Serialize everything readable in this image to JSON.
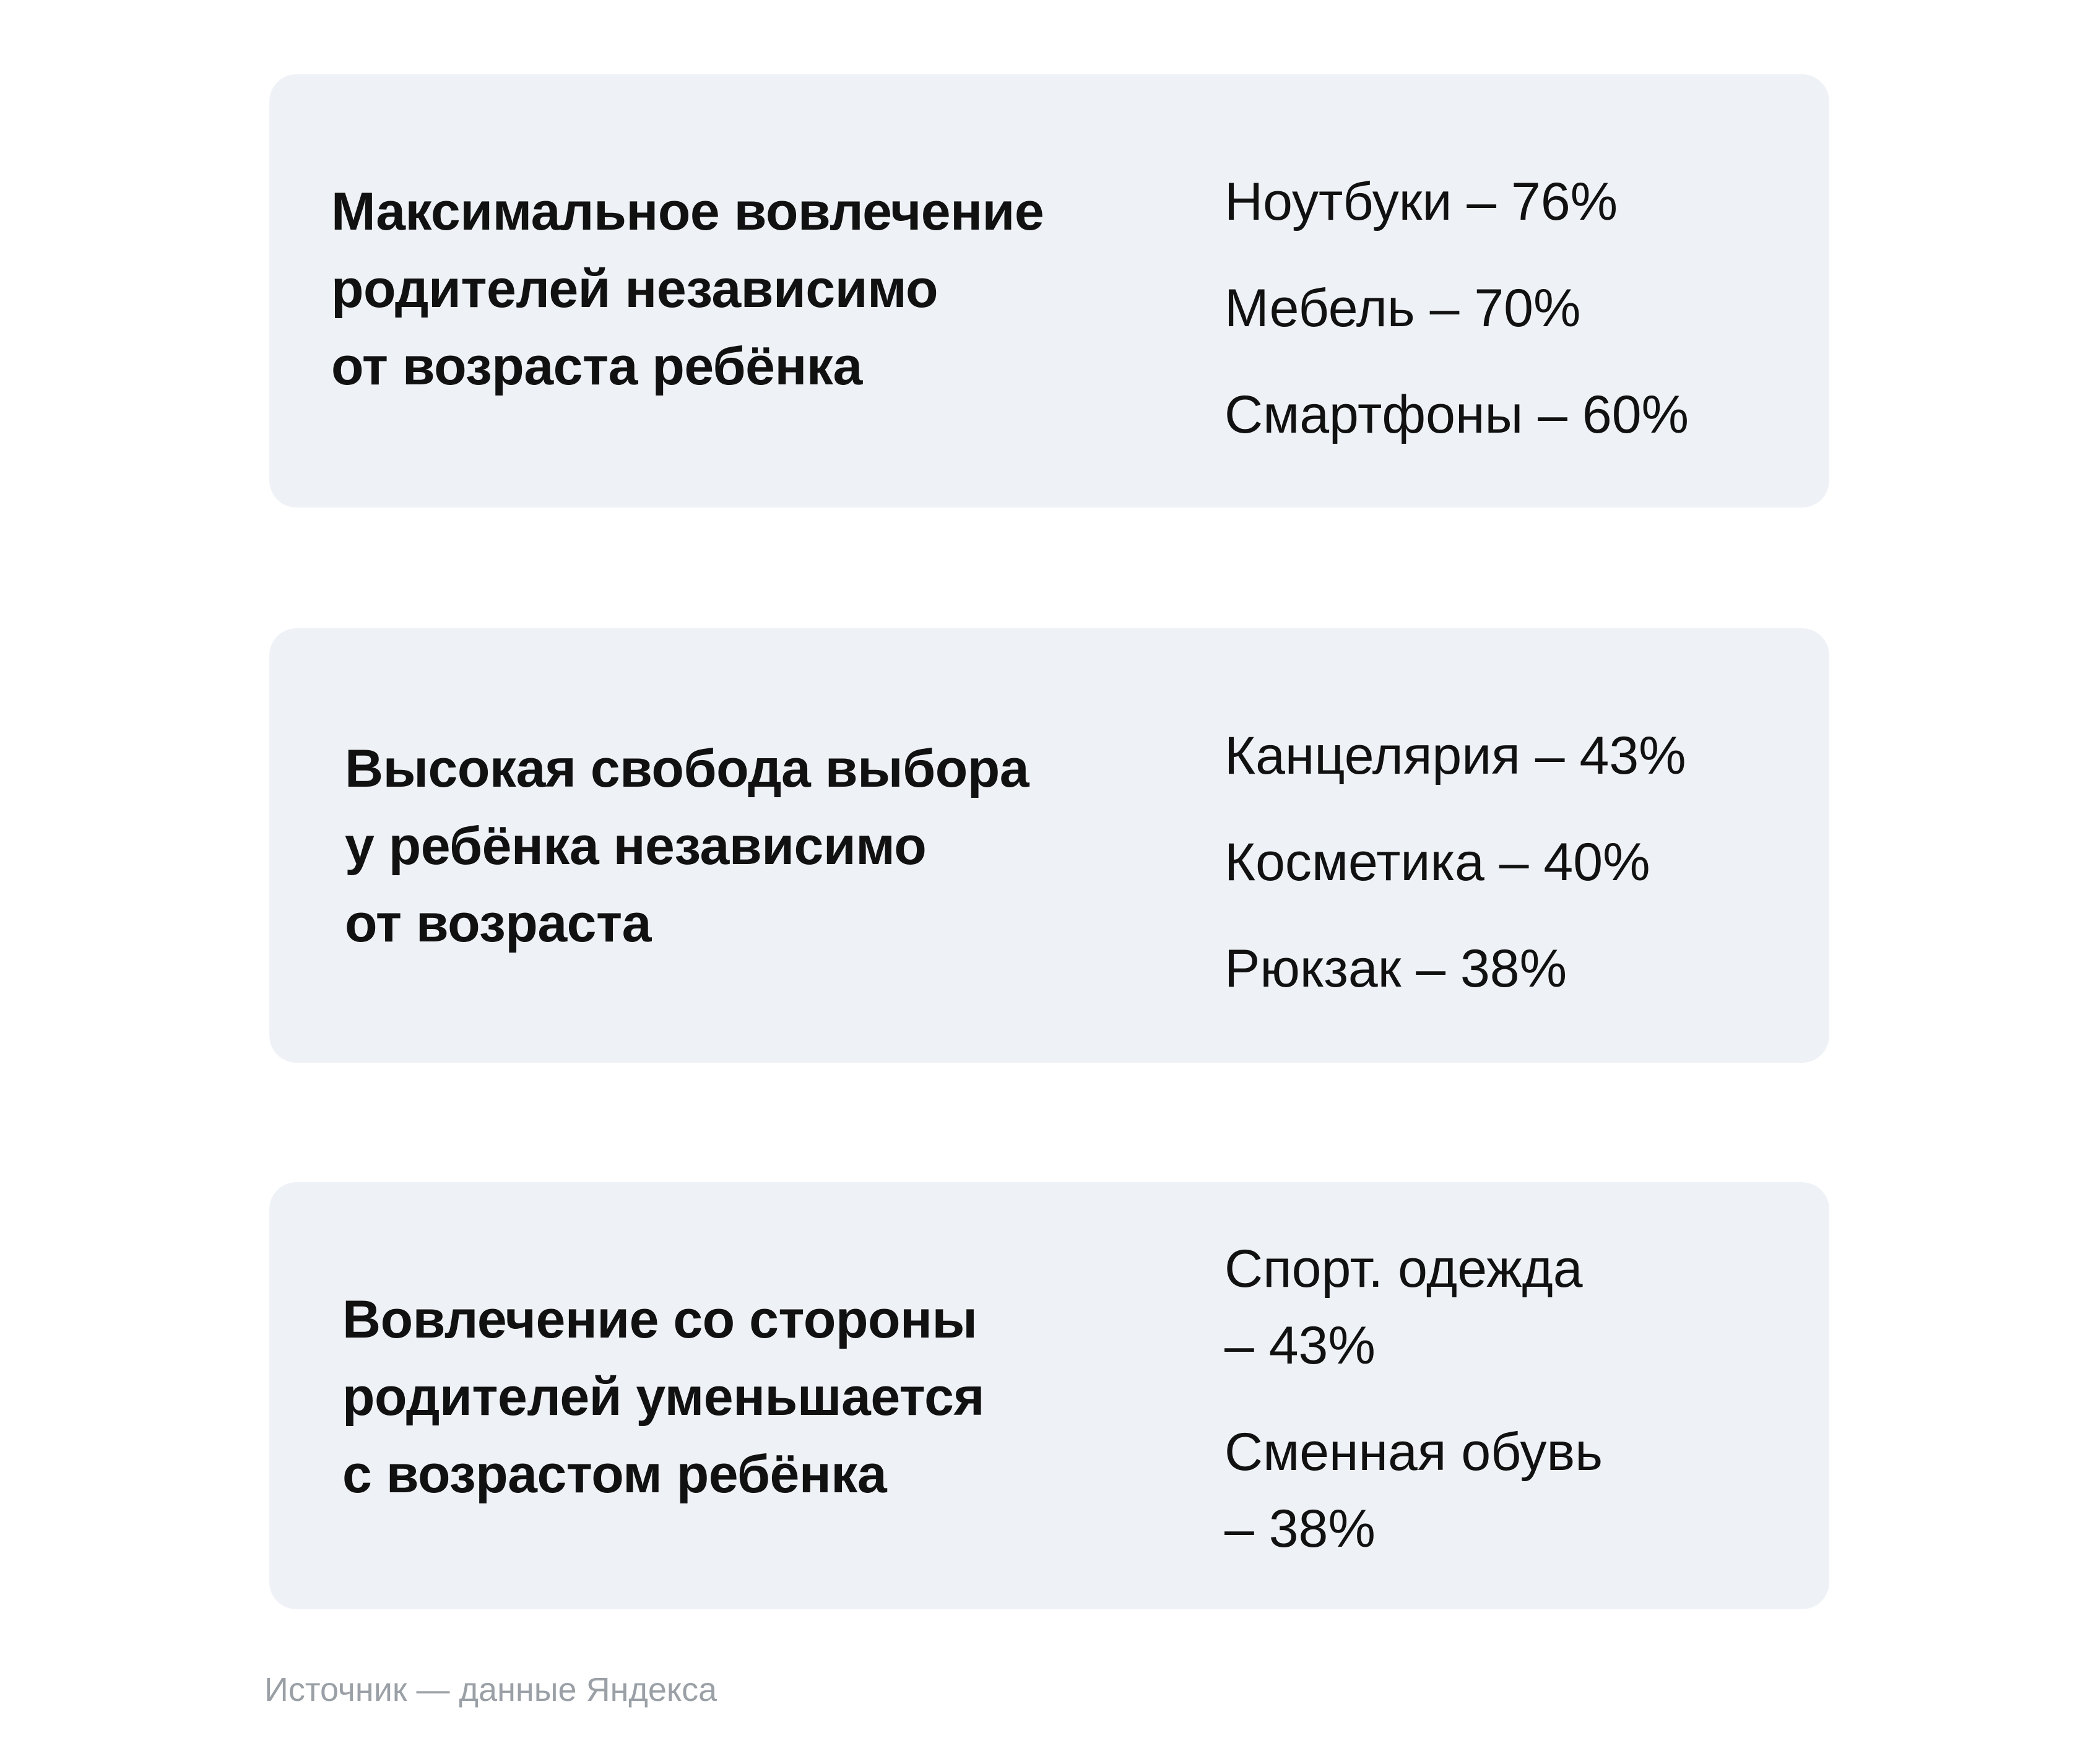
{
  "cards": [
    {
      "title": "Максимальное вовлечение\nродителей независимо\nот возраста ребёнка",
      "stats": [
        "Ноутбуки – 76%",
        "Мебель – 70%",
        "Смартфоны – 60%"
      ]
    },
    {
      "title": "Высокая свобода выбора\nу ребёнка независимо\nот возраста",
      "stats": [
        "Канцелярия – 43%",
        "Косметика – 40%",
        "Рюкзак – 38%"
      ]
    },
    {
      "title": "Вовлечение со стороны\nродителей уменьшается\nс возрастом ребёнка",
      "stats": [
        "Спорт. одежда\n– 43%",
        "Сменная обувь\n– 38%"
      ]
    }
  ],
  "source": "Источник — данные Яндекса"
}
